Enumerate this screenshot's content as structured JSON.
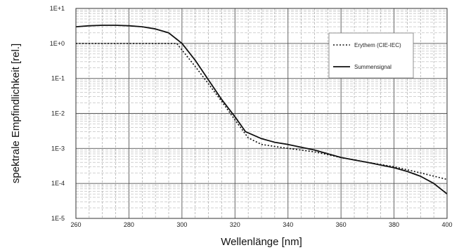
{
  "chart_data": {
    "type": "line",
    "xlabel": "Wellenlänge [nm]",
    "ylabel": "spektrale Empfindlichkeit [rel.]",
    "xlim": [
      260,
      400
    ],
    "ylim": [
      1e-05,
      10
    ],
    "y_scale": "log",
    "grid": true,
    "legend_position": "top-right",
    "x_ticks": [
      "260",
      "280",
      "300",
      "320",
      "340",
      "360",
      "380",
      "400"
    ],
    "y_ticks": [
      "1E+1",
      "1E+0",
      "1E-1",
      "1E-2",
      "1E-3",
      "1E-4",
      "1E-5"
    ],
    "series": [
      {
        "name": "Erythem (CIE-IEC)",
        "style": "dotted",
        "x": [
          260,
          270,
          280,
          290,
          298,
          300,
          305,
          310,
          315,
          320,
          325,
          330,
          340,
          350,
          360,
          370,
          380,
          390,
          400
        ],
        "y": [
          1.0,
          1.0,
          1.0,
          1.0,
          1.0,
          0.65,
          0.22,
          0.07,
          0.022,
          0.0065,
          0.002,
          0.0013,
          0.001,
          0.0008,
          0.00055,
          0.0004,
          0.0003,
          0.0002,
          0.00013
        ]
      },
      {
        "name": "Summensignal",
        "style": "solid",
        "x": [
          260,
          265,
          270,
          275,
          280,
          285,
          290,
          295,
          300,
          305,
          310,
          315,
          320,
          324,
          330,
          335,
          340,
          350,
          360,
          370,
          380,
          385,
          390,
          395,
          400
        ],
        "y": [
          3.0,
          3.2,
          3.3,
          3.3,
          3.2,
          3.0,
          2.6,
          2.0,
          1.0,
          0.33,
          0.09,
          0.025,
          0.008,
          0.003,
          0.0019,
          0.0015,
          0.0013,
          0.0009,
          0.00055,
          0.0004,
          0.00028,
          0.00022,
          0.00016,
          0.0001,
          5e-05
        ]
      }
    ]
  }
}
